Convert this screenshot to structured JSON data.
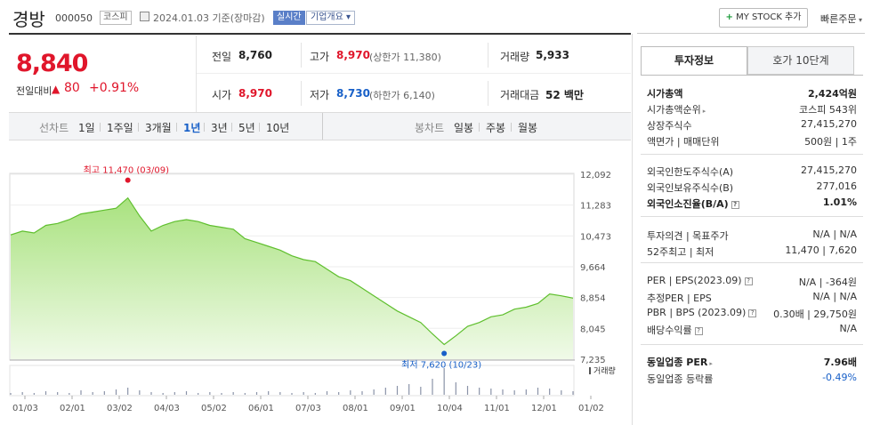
{
  "header": {
    "name": "경방",
    "code": "000050",
    "market": "코스피",
    "date_label": "2024.01.03 기준(장마감)",
    "live_label": "실시간",
    "corp_label": "기업개요",
    "mystock_label": "MY STOCK 추가",
    "quick_label": "빠른주문"
  },
  "price": {
    "current": "8,840",
    "change_label": "전일대비",
    "change": "80",
    "change_pct": "+0.91%"
  },
  "quote": {
    "prev_label": "전일",
    "prev": "8,760",
    "high_label": "고가",
    "high": "8,970",
    "upper_limit": "(상한가 11,380)",
    "volume_label": "거래량",
    "volume": "5,933",
    "open_label": "시가",
    "open": "8,970",
    "low_label": "저가",
    "low": "8,730",
    "lower_limit": "(하한가 6,140)",
    "amount_label": "거래대금",
    "amount": "52 백만"
  },
  "periods": {
    "label": "선차트",
    "items": [
      "1일",
      "1주일",
      "3개월",
      "1년",
      "3년",
      "5년",
      "10년"
    ],
    "selected": "1년",
    "candle_label": "봉차트",
    "candle_items": [
      "일봉",
      "주봉",
      "월봉"
    ]
  },
  "chart_data": {
    "type": "area",
    "x_ticks": [
      "01/03",
      "02/01",
      "03/02",
      "04/03",
      "05/02",
      "06/01",
      "07/03",
      "08/01",
      "09/01",
      "10/04",
      "11/01",
      "12/01",
      "01/02"
    ],
    "y_ticks": [
      12092,
      11283,
      10473,
      9664,
      8854,
      8045,
      7235
    ],
    "ylim": [
      7235,
      12092
    ],
    "values": [
      10500,
      10600,
      10550,
      10750,
      10800,
      10900,
      11050,
      11100,
      11150,
      11200,
      11470,
      11000,
      10600,
      10750,
      10850,
      10900,
      10850,
      10750,
      10700,
      10650,
      10400,
      10300,
      10200,
      10100,
      9950,
      9850,
      9800,
      9600,
      9400,
      9300,
      9100,
      8900,
      8700,
      8500,
      8350,
      8200,
      7900,
      7620,
      7850,
      8100,
      8200,
      8350,
      8400,
      8550,
      8600,
      8700,
      8950,
      8900,
      8840
    ],
    "max_label": "최고 11,470 (03/09)",
    "min_label": "최저 7,620 (10/23)",
    "volume_legend": "거래량",
    "volume": [
      2,
      3,
      2,
      4,
      3,
      2,
      5,
      3,
      4,
      6,
      8,
      5,
      3,
      2,
      3,
      4,
      2,
      3,
      2,
      3,
      2,
      3,
      4,
      3,
      2,
      3,
      2,
      4,
      3,
      5,
      4,
      6,
      8,
      10,
      12,
      9,
      18,
      30,
      14,
      10,
      8,
      7,
      6,
      5,
      6,
      8,
      7,
      5,
      4
    ]
  },
  "invest": {
    "tab_on": "투자정보",
    "tab_off": "호가 10단계",
    "rows": [
      {
        "l": "시가총액",
        "r": "2,424억원"
      },
      {
        "l": "시가총액순위",
        "r": "코스피 543위"
      },
      {
        "l": "상장주식수",
        "r": "27,415,270"
      },
      {
        "l": "액면가 | 매매단위",
        "r": "500원 | 1주"
      },
      {
        "l": "외국인한도주식수(A)",
        "r": "27,415,270"
      },
      {
        "l": "외국인보유주식수(B)",
        "r": "277,016"
      },
      {
        "l": "외국인소진율(B/A)",
        "r": "1.01%"
      },
      {
        "l": "투자의견 | 목표주가",
        "r": "N/A | N/A"
      },
      {
        "l": "52주최고 | 최저",
        "r": "11,470 | 7,620"
      },
      {
        "l": "PER | EPS(2023.09)",
        "r": "N/A | -364원"
      },
      {
        "l": "추정PER | EPS",
        "r": "N/A | N/A"
      },
      {
        "l": "PBR | BPS (2023.09)",
        "r": "0.30배 | 29,750원"
      },
      {
        "l": "배당수익률",
        "r": "N/A"
      },
      {
        "l": "동일업종 PER",
        "r": "7.96배"
      },
      {
        "l": "동일업종 등락률",
        "r": "-0.49%"
      }
    ]
  }
}
